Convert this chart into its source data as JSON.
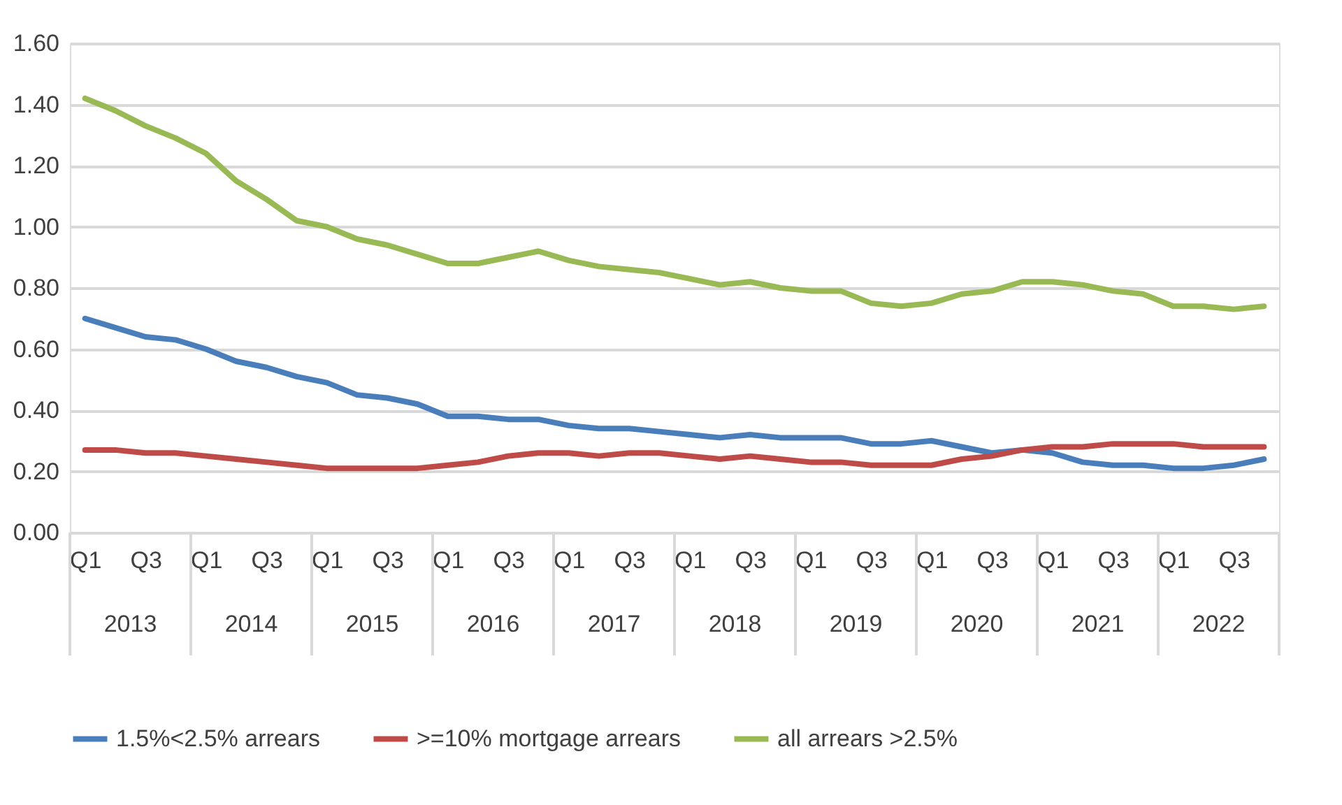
{
  "chart_data": {
    "type": "line",
    "categories": [
      "Q1",
      null,
      "Q3",
      null,
      "Q1",
      null,
      "Q3",
      null,
      "Q1",
      null,
      "Q3",
      null,
      "Q1",
      null,
      "Q3",
      null,
      "Q1",
      null,
      "Q3",
      null,
      "Q1",
      null,
      "Q3",
      null,
      "Q1",
      null,
      "Q3",
      null,
      "Q1",
      null,
      "Q3",
      null,
      "Q1",
      null,
      "Q3",
      null,
      "Q1",
      null,
      "Q3",
      null
    ],
    "annotations": [
      "2013",
      "2014",
      "2015",
      "2016",
      "2017",
      "2018",
      "2019",
      "2020",
      "2021",
      "2022"
    ],
    "series": [
      {
        "name": "1.5%<2.5% arrears",
        "color": "#4a7ebb",
        "values": [
          0.7,
          0.67,
          0.64,
          0.63,
          0.6,
          0.56,
          0.54,
          0.51,
          0.49,
          0.45,
          0.44,
          0.42,
          0.38,
          0.38,
          0.37,
          0.37,
          0.35,
          0.34,
          0.34,
          0.33,
          0.32,
          0.31,
          0.32,
          0.31,
          0.31,
          0.31,
          0.29,
          0.29,
          0.3,
          0.28,
          0.26,
          0.27,
          0.26,
          0.23,
          0.22,
          0.22,
          0.21,
          0.21,
          0.22,
          0.24
        ]
      },
      {
        "name": ">=10% mortgage arrears",
        "color": "#be4b48",
        "values": [
          0.27,
          0.27,
          0.26,
          0.26,
          0.25,
          0.24,
          0.23,
          0.22,
          0.21,
          0.21,
          0.21,
          0.21,
          0.22,
          0.23,
          0.25,
          0.26,
          0.26,
          0.25,
          0.26,
          0.26,
          0.25,
          0.24,
          0.25,
          0.24,
          0.23,
          0.23,
          0.22,
          0.22,
          0.22,
          0.24,
          0.25,
          0.27,
          0.28,
          0.28,
          0.29,
          0.29,
          0.29,
          0.28,
          0.28,
          0.28
        ]
      },
      {
        "name": "all arrears >2.5%",
        "color": "#98b954",
        "values": [
          1.42,
          1.38,
          1.33,
          1.29,
          1.24,
          1.15,
          1.09,
          1.02,
          1.0,
          0.96,
          0.94,
          0.91,
          0.88,
          0.88,
          0.9,
          0.92,
          0.89,
          0.87,
          0.86,
          0.85,
          0.83,
          0.81,
          0.82,
          0.8,
          0.79,
          0.79,
          0.75,
          0.74,
          0.75,
          0.78,
          0.79,
          0.82,
          0.82,
          0.81,
          0.79,
          0.78,
          0.74,
          0.74,
          0.73,
          0.74
        ]
      }
    ],
    "ylim": [
      0,
      1.6
    ],
    "yticks": [
      {
        "value": 0,
        "label": "0.00"
      },
      {
        "value": 0.2,
        "label": "0.20"
      },
      {
        "value": 0.4,
        "label": "0.40"
      },
      {
        "value": 0.6,
        "label": "0.60"
      },
      {
        "value": 0.8,
        "label": "0.80"
      },
      {
        "value": 1.0,
        "label": "1.00"
      },
      {
        "value": 1.2,
        "label": "1.20"
      },
      {
        "value": 1.4,
        "label": "1.40"
      },
      {
        "value": 1.6,
        "label": "1.60"
      }
    ],
    "grid": "y",
    "legend": "bottom",
    "marker": "none",
    "line_style": "solid"
  }
}
